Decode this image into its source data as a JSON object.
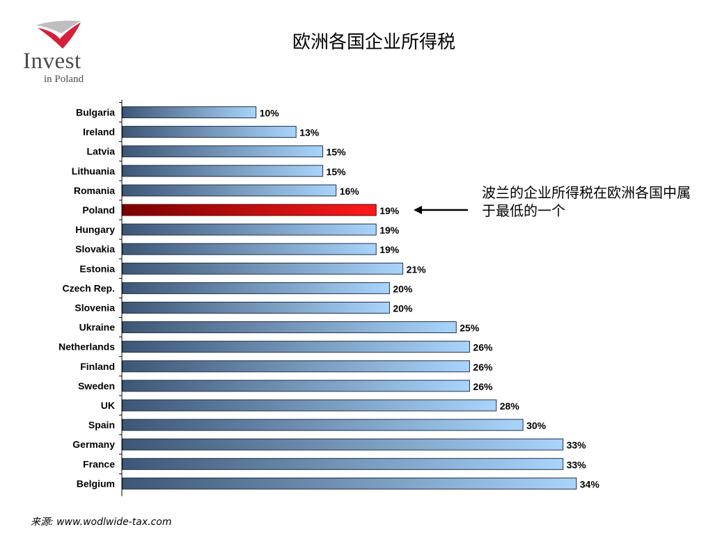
{
  "logo": {
    "word_main": "Invest",
    "word_sub": "in Poland",
    "icon": "invest-in-poland-flag-logo",
    "colors": {
      "red": "#d6203a",
      "gray": "#bfbfbf",
      "text": "#4a4a4a"
    }
  },
  "chart_data": {
    "type": "bar",
    "orientation": "horizontal",
    "title": "欧洲各国企业所得税",
    "categories": [
      "Bulgaria",
      "Ireland",
      "Latvia",
      "Lithuania",
      "Romania",
      "Poland",
      "Hungary",
      "Slovakia",
      "Estonia",
      "Czech Rep.",
      "Slovenia",
      "Ukraine",
      "Netherlands",
      "Finland",
      "Sweden",
      "UK",
      "Spain",
      "Germany",
      "France",
      "Belgium"
    ],
    "values": [
      10,
      13,
      15,
      15,
      16,
      19,
      19,
      19,
      21,
      20,
      20,
      25,
      26,
      26,
      26,
      28,
      30,
      33,
      33,
      34
    ],
    "value_labels": [
      "10%",
      "13%",
      "15%",
      "15%",
      "16%",
      "19%",
      "19%",
      "19%",
      "21%",
      "20%",
      "20%",
      "25%",
      "26%",
      "26%",
      "26%",
      "28%",
      "30%",
      "33%",
      "33%",
      "34%"
    ],
    "highlight": "Poland",
    "xlim": [
      0,
      35
    ],
    "grid": false,
    "colors": {
      "bar_dark": "#3d5675",
      "bar_light": "#a9d4fb",
      "highlight_dark": "#7a0000",
      "highlight_light": "#ff1a1a",
      "outline": "#1f2f4a"
    }
  },
  "annotation": {
    "text": "波兰的企业所得税在欧洲各国中属于最低的一个",
    "icon": "left-arrow-icon"
  },
  "source": {
    "text": "来源: www.wodlwide-tax.com"
  }
}
